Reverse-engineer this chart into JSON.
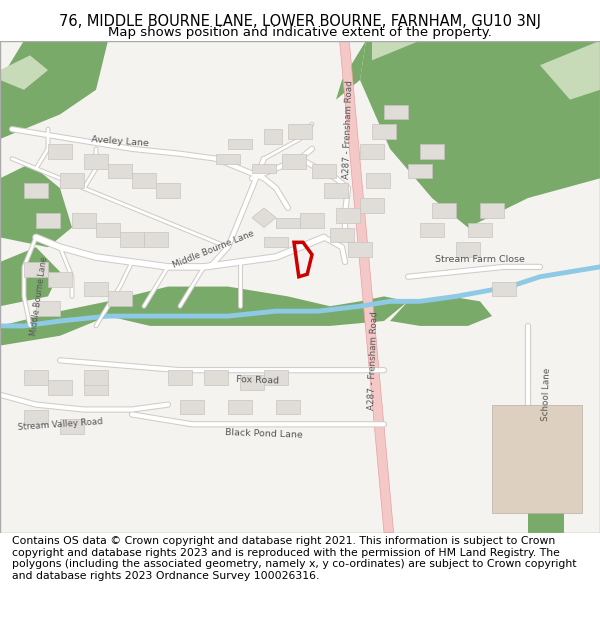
{
  "title_line1": "76, MIDDLE BOURNE LANE, LOWER BOURNE, FARNHAM, GU10 3NJ",
  "title_line2": "Map shows position and indicative extent of the property.",
  "footer_text": "Contains OS data © Crown copyright and database right 2021. This information is subject to Crown copyright and database rights 2023 and is reproduced with the permission of HM Land Registry. The polygons (including the associated geometry, namely x, y co-ordinates) are subject to Crown copyright and database rights 2023 Ordnance Survey 100026316.",
  "title_fontsize": 10.5,
  "subtitle_fontsize": 9.5,
  "footer_fontsize": 7.8,
  "fig_width": 6.0,
  "fig_height": 6.25,
  "background_color": "#ffffff",
  "map_bg_color": "#f5f3f0",
  "green_light": "#c8dbb8",
  "green_dark": "#7aaa6a",
  "stream_color": "#8ecae6",
  "road_fill": "#ffffff",
  "road_edge": "#d0ccc8",
  "pink_road_fill": "#f5c8c8",
  "pink_road_edge": "#e8a0a0",
  "building_color": "#e0dcd8",
  "building_edge": "#c8c4c0",
  "beige_building": "#ddd0c0",
  "label_color": "#555555",
  "red_poly_color": "#cc0000",
  "title_color": "#000000"
}
